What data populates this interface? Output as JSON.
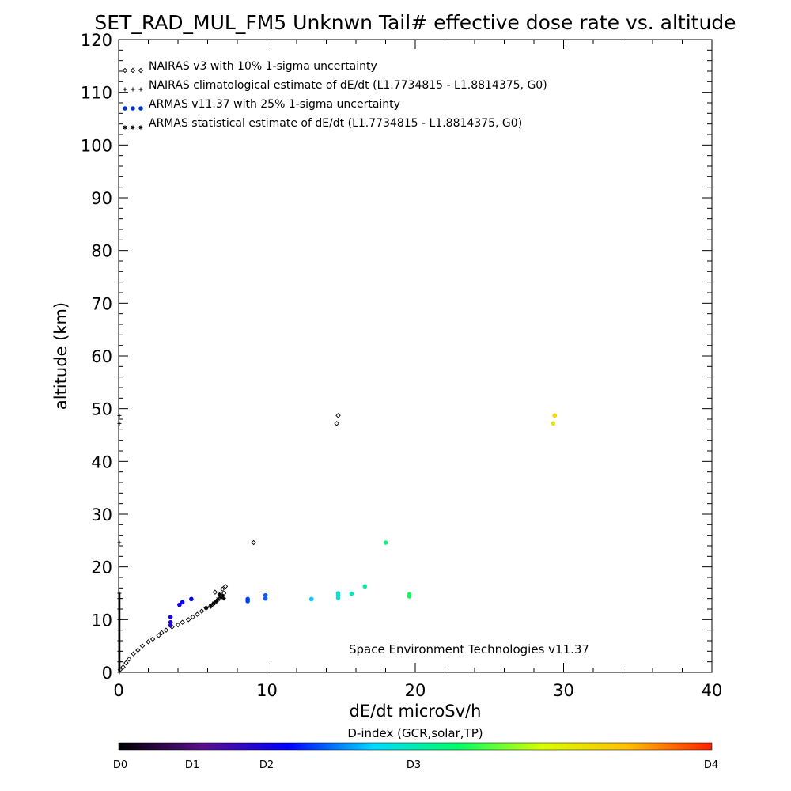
{
  "chart_data": {
    "type": "scatter",
    "title": "SET_RAD_MUL_FM5 Unknwn Tail#  effective dose rate vs. altitude",
    "xlabel": "dE/dt microSv/h",
    "ylabel": "altitude (km)",
    "xlim": [
      0,
      40
    ],
    "ylim": [
      0,
      120
    ],
    "xticks": [
      0,
      10,
      20,
      30,
      40
    ],
    "yticks": [
      0,
      10,
      20,
      30,
      40,
      50,
      60,
      70,
      80,
      90,
      100,
      110,
      120
    ],
    "legend_position": "top-left",
    "legend": [
      {
        "label": "NAIRAS v3 with 10% 1-sigma uncertainty",
        "marker": "diamond",
        "color": "#000000"
      },
      {
        "label": "NAIRAS climatological estimate of dE/dt (L1.7734815 - L1.8814375, G0)",
        "marker": "plus",
        "color": "#000000"
      },
      {
        "label": "ARMAS v11.37 with 25% 1-sigma uncertainty",
        "marker": "dot",
        "color": "#0033cc"
      },
      {
        "label": "ARMAS statistical estimate of dE/dt (L1.7734815 - L1.8814375, G0)",
        "marker": "asterisk",
        "color": "#000000"
      }
    ],
    "annotation": "Space Environment Technologies v11.37",
    "series": [
      {
        "name": "NAIRAS v3 with 10% 1-sigma uncertainty",
        "marker": "diamond",
        "points": [
          [
            0.1,
            0.5
          ],
          [
            0.3,
            1.0
          ],
          [
            0.5,
            1.8
          ],
          [
            0.7,
            2.5
          ],
          [
            1.0,
            3.5
          ],
          [
            1.3,
            4.2
          ],
          [
            1.6,
            5.0
          ],
          [
            2.0,
            5.8
          ],
          [
            2.3,
            6.3
          ],
          [
            2.7,
            7.0
          ],
          [
            2.9,
            7.5
          ],
          [
            3.2,
            8.0
          ],
          [
            3.6,
            8.6
          ],
          [
            4.0,
            9.0
          ],
          [
            4.3,
            9.5
          ],
          [
            4.7,
            10.0
          ],
          [
            5.0,
            10.5
          ],
          [
            5.3,
            11.0
          ],
          [
            5.6,
            11.6
          ],
          [
            5.9,
            12.2
          ],
          [
            6.2,
            12.5
          ],
          [
            6.4,
            13.0
          ],
          [
            6.6,
            13.5
          ],
          [
            6.8,
            14.0
          ],
          [
            6.9,
            14.5
          ],
          [
            7.1,
            15.0
          ],
          [
            7.0,
            15.8
          ],
          [
            7.2,
            16.3
          ],
          [
            6.5,
            15.2
          ],
          [
            9.1,
            24.6
          ],
          [
            14.7,
            47.2
          ],
          [
            14.8,
            48.7
          ]
        ]
      },
      {
        "name": "NAIRAS climatological estimate of dE/dt (L1.7734815 - L1.8814375, G0)",
        "marker": "plus",
        "points": [
          [
            0.05,
            0.0
          ],
          [
            0.05,
            2.0
          ],
          [
            0.05,
            4.0
          ],
          [
            0.05,
            6.0
          ],
          [
            0.05,
            8.0
          ],
          [
            0.05,
            10.0
          ],
          [
            0.05,
            12.0
          ],
          [
            0.05,
            14.0
          ],
          [
            0.05,
            15.0
          ],
          [
            0.05,
            24.6
          ],
          [
            0.05,
            47.2
          ],
          [
            0.05,
            48.7
          ]
        ]
      },
      {
        "name": "ARMAS v11.37 with 25% 1-sigma uncertainty",
        "marker": "dot",
        "points": [
          [
            3.5,
            8.9,
            0.22
          ],
          [
            3.5,
            9.5,
            0.22
          ],
          [
            3.5,
            10.5,
            0.25
          ],
          [
            4.1,
            12.8,
            0.25
          ],
          [
            4.3,
            13.3,
            0.27
          ],
          [
            4.9,
            13.9,
            0.28
          ],
          [
            8.7,
            13.5,
            0.33
          ],
          [
            8.7,
            13.9,
            0.33
          ],
          [
            9.9,
            14.0,
            0.35
          ],
          [
            9.9,
            14.6,
            0.35
          ],
          [
            13.0,
            13.9,
            0.42
          ],
          [
            14.8,
            14.1,
            0.47
          ],
          [
            14.8,
            14.6,
            0.47
          ],
          [
            14.8,
            15.0,
            0.47
          ],
          [
            15.7,
            14.9,
            0.5
          ],
          [
            16.6,
            16.3,
            0.52
          ],
          [
            18.0,
            24.6,
            0.55
          ],
          [
            19.6,
            14.4,
            0.58
          ],
          [
            19.6,
            14.8,
            0.58
          ],
          [
            29.3,
            47.2,
            0.78
          ],
          [
            29.4,
            48.7,
            0.8
          ]
        ]
      },
      {
        "name": "ARMAS statistical estimate of dE/dt (L1.7734815 - L1.8814375, G0)",
        "marker": "asterisk",
        "points": [
          [
            5.9,
            12.2
          ],
          [
            6.2,
            12.6
          ],
          [
            6.4,
            13.1
          ],
          [
            6.6,
            13.5
          ],
          [
            6.7,
            13.9
          ],
          [
            6.9,
            14.2
          ],
          [
            7.0,
            14.5
          ],
          [
            6.8,
            14.8
          ],
          [
            7.1,
            14.0
          ]
        ]
      }
    ],
    "colorbar": {
      "title": "D-index (GCR,solar,TP)",
      "labels": [
        "D0",
        "D1",
        "D2",
        "D3",
        "D4"
      ],
      "colors": [
        "#000000",
        "#5a0f8c",
        "#0000ff",
        "#00d8ff",
        "#00ff66",
        "#d9ff00",
        "#ffc000",
        "#ff2000"
      ]
    }
  }
}
